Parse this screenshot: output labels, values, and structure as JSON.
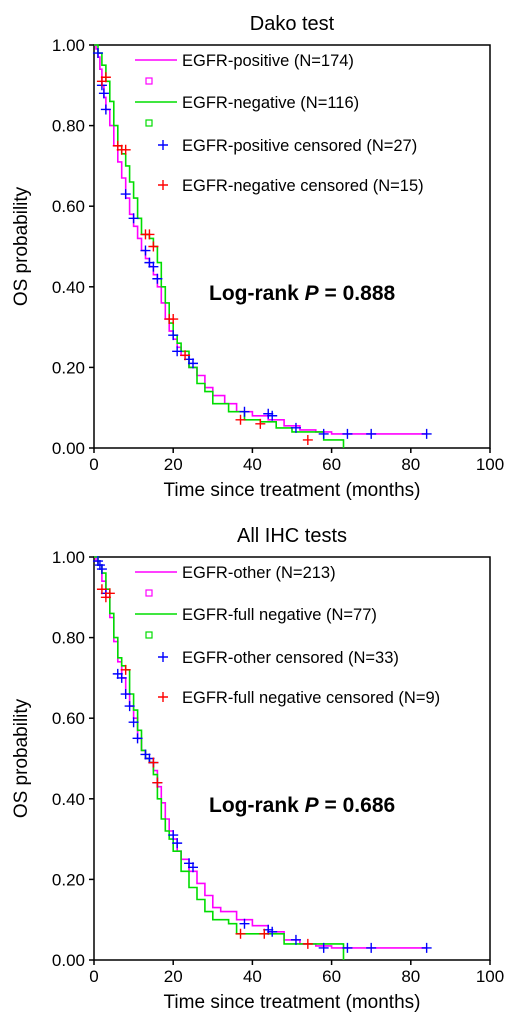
{
  "chart_data": [
    {
      "type": "line",
      "subtype": "kaplan-meier survival curve",
      "title": "Dako test",
      "xlabel": "Time since treatment (months)",
      "ylabel": "OS probability",
      "xlim": [
        0,
        100
      ],
      "ylim": [
        0,
        1
      ],
      "xticks": [
        "0",
        "20",
        "40",
        "60",
        "80",
        "100"
      ],
      "yticks": [
        "0.00",
        "0.20",
        "0.40",
        "0.60",
        "0.80",
        "1.00"
      ],
      "grid": false,
      "legend_position": "top-right",
      "annotation": {
        "prefix": "Log-rank ",
        "p_symbol": "P",
        "suffix": " = 0.888"
      },
      "series": [
        {
          "name": "EGFR-positive (N=174)",
          "color": "#ff00ff",
          "x": [
            0,
            0.5,
            1,
            1.5,
            2,
            2.5,
            3,
            4,
            5,
            6,
            7,
            8,
            9,
            10,
            11,
            12,
            13,
            14,
            15,
            16,
            17,
            18,
            19,
            20,
            21,
            22,
            24,
            26,
            28,
            30,
            33,
            36,
            40,
            44,
            48,
            52,
            56,
            60,
            70,
            84
          ],
          "y": [
            1.0,
            0.99,
            0.97,
            0.94,
            0.9,
            0.87,
            0.84,
            0.8,
            0.75,
            0.71,
            0.67,
            0.62,
            0.58,
            0.55,
            0.52,
            0.49,
            0.47,
            0.45,
            0.43,
            0.4,
            0.36,
            0.32,
            0.29,
            0.27,
            0.25,
            0.23,
            0.2,
            0.18,
            0.15,
            0.13,
            0.11,
            0.09,
            0.08,
            0.07,
            0.055,
            0.045,
            0.04,
            0.035,
            0.035,
            0.035
          ]
        },
        {
          "name": "EGFR-negative (N=116)",
          "color": "#00dd00",
          "x": [
            0,
            1,
            2,
            3,
            4,
            5,
            6,
            7,
            8,
            9,
            10,
            11,
            12,
            13,
            14,
            15,
            16,
            17,
            18,
            19,
            20,
            21,
            22,
            24,
            26,
            28,
            30,
            34,
            38,
            42,
            46,
            50,
            54,
            58,
            62,
            63
          ],
          "y": [
            1.0,
            0.98,
            0.95,
            0.91,
            0.86,
            0.8,
            0.75,
            0.73,
            0.7,
            0.66,
            0.62,
            0.57,
            0.53,
            0.53,
            0.52,
            0.5,
            0.46,
            0.4,
            0.36,
            0.31,
            0.28,
            0.26,
            0.24,
            0.2,
            0.16,
            0.14,
            0.11,
            0.09,
            0.07,
            0.065,
            0.05,
            0.04,
            0.04,
            0.02,
            0.02,
            0.0
          ]
        }
      ],
      "censored": [
        {
          "name": "EGFR-positive censored (N=27)",
          "color": "#0000ff",
          "x": [
            1,
            2,
            2.5,
            3,
            8,
            10,
            13,
            14,
            15,
            16,
            20,
            21,
            24,
            25,
            38,
            44,
            45,
            51,
            58,
            64,
            70,
            84
          ],
          "y": [
            0.98,
            0.9,
            0.88,
            0.84,
            0.63,
            0.57,
            0.49,
            0.46,
            0.45,
            0.42,
            0.28,
            0.24,
            0.22,
            0.21,
            0.09,
            0.085,
            0.08,
            0.05,
            0.035,
            0.035,
            0.035,
            0.035
          ]
        },
        {
          "name": "EGFR-negative censored (N=15)",
          "color": "#ff0000",
          "x": [
            2,
            3,
            6,
            7,
            8,
            13,
            14,
            15,
            19,
            20,
            23,
            37,
            42,
            54
          ],
          "y": [
            0.91,
            0.92,
            0.75,
            0.74,
            0.74,
            0.53,
            0.53,
            0.5,
            0.32,
            0.32,
            0.23,
            0.07,
            0.06,
            0.02
          ]
        }
      ]
    },
    {
      "type": "line",
      "subtype": "kaplan-meier survival curve",
      "title": "All IHC tests",
      "xlabel": "Time since treatment (months)",
      "ylabel": "OS probability",
      "xlim": [
        0,
        100
      ],
      "ylim": [
        0,
        1
      ],
      "xticks": [
        "0",
        "20",
        "40",
        "60",
        "80",
        "100"
      ],
      "yticks": [
        "0.00",
        "0.20",
        "0.40",
        "0.60",
        "0.80",
        "1.00"
      ],
      "grid": false,
      "legend_position": "top-right",
      "annotation": {
        "prefix": "Log-rank ",
        "p_symbol": "P",
        "suffix": " = 0.686"
      },
      "series": [
        {
          "name": "EGFR-other (N=213)",
          "color": "#ff00ff",
          "x": [
            0,
            0.5,
            1,
            2,
            3,
            4,
            5,
            6,
            7,
            8,
            9,
            10,
            11,
            12,
            13,
            14,
            15,
            16,
            17,
            18,
            19,
            20,
            21,
            22,
            24,
            26,
            28,
            30,
            32,
            36,
            40,
            44,
            48,
            52,
            56,
            60,
            70,
            84
          ],
          "y": [
            1.0,
            0.99,
            0.98,
            0.94,
            0.9,
            0.85,
            0.79,
            0.74,
            0.7,
            0.66,
            0.63,
            0.6,
            0.55,
            0.52,
            0.5,
            0.49,
            0.47,
            0.43,
            0.39,
            0.35,
            0.32,
            0.3,
            0.27,
            0.25,
            0.22,
            0.19,
            0.16,
            0.13,
            0.12,
            0.1,
            0.085,
            0.07,
            0.05,
            0.04,
            0.035,
            0.03,
            0.03,
            0.03
          ]
        },
        {
          "name": "EGFR-full negative (N=77)",
          "color": "#00dd00",
          "x": [
            0,
            1,
            2,
            3,
            4,
            5,
            6,
            7,
            8,
            9,
            10,
            11,
            12,
            13,
            14,
            15,
            16,
            17,
            18,
            19,
            20,
            22,
            24,
            26,
            28,
            30,
            34,
            36,
            40,
            44,
            48,
            52,
            56,
            60,
            62,
            63
          ],
          "y": [
            1.0,
            0.98,
            0.96,
            0.92,
            0.86,
            0.8,
            0.75,
            0.73,
            0.72,
            0.66,
            0.62,
            0.57,
            0.52,
            0.5,
            0.49,
            0.46,
            0.4,
            0.35,
            0.32,
            0.3,
            0.27,
            0.22,
            0.18,
            0.15,
            0.12,
            0.1,
            0.09,
            0.065,
            0.065,
            0.065,
            0.04,
            0.04,
            0.04,
            0.04,
            0.04,
            0.0
          ]
        }
      ],
      "censored": [
        {
          "name": "EGFR-other censored (N=33)",
          "color": "#0000ff",
          "x": [
            1,
            1.5,
            2,
            3,
            6,
            7,
            8,
            9,
            10,
            11,
            13,
            14,
            15,
            16,
            20,
            21,
            24,
            25,
            38,
            44,
            45,
            51,
            58,
            64,
            70,
            84
          ],
          "y": [
            0.99,
            0.98,
            0.97,
            0.91,
            0.71,
            0.7,
            0.66,
            0.63,
            0.59,
            0.55,
            0.51,
            0.5,
            0.49,
            0.44,
            0.31,
            0.29,
            0.24,
            0.23,
            0.09,
            0.075,
            0.07,
            0.05,
            0.03,
            0.03,
            0.03,
            0.03
          ]
        },
        {
          "name": "EGFR-full negative censored (N=9)",
          "color": "#ff0000",
          "x": [
            2,
            3,
            4,
            8,
            15,
            16,
            37,
            43,
            54
          ],
          "y": [
            0.92,
            0.9,
            0.91,
            0.72,
            0.49,
            0.44,
            0.065,
            0.065,
            0.04
          ]
        }
      ]
    }
  ]
}
